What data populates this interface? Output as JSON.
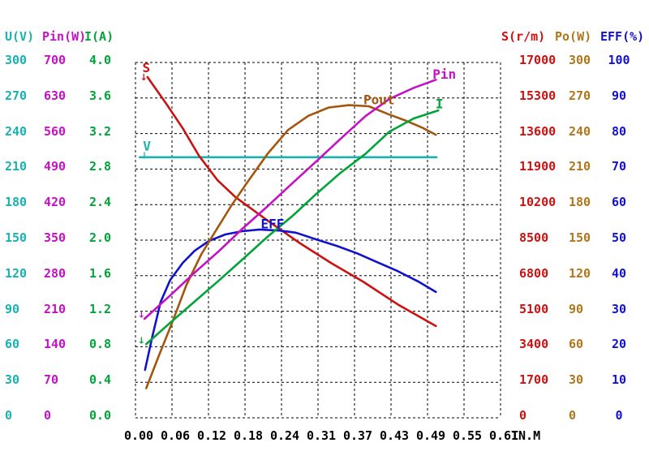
{
  "axes_left": [
    {
      "label": "U(V)",
      "unit": "V",
      "color": "#18b2b2",
      "ticks": [
        "300",
        "270",
        "240",
        "210",
        "180",
        "150",
        "120",
        "90",
        "60",
        "30",
        "0"
      ]
    },
    {
      "label": "Pin(W)",
      "unit": "W",
      "color": "#c511c5",
      "ticks": [
        "700",
        "630",
        "560",
        "490",
        "420",
        "350",
        "280",
        "210",
        "140",
        "70",
        "0"
      ]
    },
    {
      "label": "I(A)",
      "unit": "A",
      "color": "#00a438",
      "ticks": [
        "4.0",
        "3.6",
        "3.2",
        "2.8",
        "2.4",
        "2.0",
        "1.6",
        "1.2",
        "0.8",
        "0.4",
        "0.0"
      ]
    }
  ],
  "axes_right": [
    {
      "label": "S(r/m)",
      "unit": "r/m",
      "color": "#cc1111",
      "ticks": [
        "17000",
        "15300",
        "13600",
        "11900",
        "10200",
        "8500",
        "6800",
        "5100",
        "3400",
        "1700",
        "0"
      ]
    },
    {
      "label": "Po(W)",
      "unit": "W",
      "color": "#b0761a",
      "ticks": [
        "300",
        "270",
        "240",
        "210",
        "180",
        "150",
        "120",
        "90",
        "60",
        "30",
        "0"
      ]
    },
    {
      "label": "EFF(%)",
      "unit": "%",
      "color": "#1212cc",
      "ticks": [
        "100",
        "90",
        "80",
        "70",
        "60",
        "50",
        "40",
        "30",
        "20",
        "10",
        "0"
      ]
    }
  ],
  "x_axis": {
    "ticks": [
      "0.00",
      "0.06",
      "0.12",
      "0.18",
      "0.24",
      "0.31",
      "0.37",
      "0.43",
      "0.49",
      "0.55",
      "0.61"
    ],
    "unit_label": "TN.M",
    "color": "#000000"
  },
  "chart_data": {
    "type": "line",
    "title": "",
    "xlabel": "TN.M",
    "x_range": [
      0,
      0.61
    ],
    "grid": "dashed",
    "series": [
      {
        "name": "V",
        "axis": "U(V)",
        "color": "#18b2b2",
        "y_range": [
          0,
          300
        ],
        "points": [
          [
            0.007,
            220
          ],
          [
            0.503,
            220
          ]
        ]
      },
      {
        "name": "S",
        "axis": "S(r/m)",
        "color": "#cc1111",
        "y_range": [
          0,
          17000
        ],
        "points": [
          [
            0.02,
            16300
          ],
          [
            0.052,
            15000
          ],
          [
            0.079,
            13850
          ],
          [
            0.106,
            12540
          ],
          [
            0.137,
            11370
          ],
          [
            0.167,
            10560
          ],
          [
            0.221,
            9430
          ],
          [
            0.275,
            8350
          ],
          [
            0.329,
            7370
          ],
          [
            0.38,
            6520
          ],
          [
            0.438,
            5430
          ],
          [
            0.502,
            4390
          ]
        ]
      },
      {
        "name": "EFF",
        "axis": "EFF(%)",
        "color": "#1212cc",
        "y_range": [
          0,
          100
        ],
        "points": [
          [
            0.016,
            13.5
          ],
          [
            0.028,
            22.8
          ],
          [
            0.042,
            32.6
          ],
          [
            0.058,
            38.8
          ],
          [
            0.079,
            43.6
          ],
          [
            0.099,
            47.0
          ],
          [
            0.123,
            49.8
          ],
          [
            0.15,
            51.6
          ],
          [
            0.178,
            52.5
          ],
          [
            0.207,
            53.0
          ],
          [
            0.241,
            52.7
          ],
          [
            0.268,
            52.1
          ],
          [
            0.302,
            50.2
          ],
          [
            0.336,
            48.4
          ],
          [
            0.37,
            46.3
          ],
          [
            0.404,
            43.8
          ],
          [
            0.438,
            41.3
          ],
          [
            0.472,
            38.4
          ],
          [
            0.502,
            35.4
          ]
        ]
      },
      {
        "name": "Pout",
        "axis": "Po(W)",
        "color": "#a3560e",
        "y_range": [
          0,
          300
        ],
        "points": [
          [
            0.018,
            25
          ],
          [
            0.038,
            51
          ],
          [
            0.061,
            80
          ],
          [
            0.085,
            112
          ],
          [
            0.11,
            138
          ],
          [
            0.133,
            157
          ],
          [
            0.16,
            179
          ],
          [
            0.187,
            199
          ],
          [
            0.221,
            223
          ],
          [
            0.255,
            243
          ],
          [
            0.289,
            255
          ],
          [
            0.323,
            262
          ],
          [
            0.357,
            264
          ],
          [
            0.39,
            263
          ],
          [
            0.424,
            256
          ],
          [
            0.451,
            251
          ],
          [
            0.479,
            245
          ],
          [
            0.502,
            239
          ]
        ]
      },
      {
        "name": "Pin",
        "axis": "Pin(W)",
        "color": "#c511c5",
        "y_range": [
          0,
          700
        ],
        "points": [
          [
            0.015,
            195
          ],
          [
            0.058,
            241
          ],
          [
            0.099,
            286
          ],
          [
            0.14,
            329
          ],
          [
            0.18,
            374
          ],
          [
            0.221,
            417
          ],
          [
            0.262,
            462
          ],
          [
            0.302,
            505
          ],
          [
            0.343,
            550
          ],
          [
            0.384,
            594
          ],
          [
            0.424,
            628
          ],
          [
            0.465,
            650
          ],
          [
            0.502,
            666
          ]
        ]
      },
      {
        "name": "I",
        "axis": "I(A)",
        "color": "#00a438",
        "y_range": [
          0,
          4
        ],
        "points": [
          [
            0.018,
            0.83
          ],
          [
            0.058,
            1.07
          ],
          [
            0.099,
            1.31
          ],
          [
            0.14,
            1.55
          ],
          [
            0.18,
            1.79
          ],
          [
            0.221,
            2.04
          ],
          [
            0.262,
            2.27
          ],
          [
            0.302,
            2.52
          ],
          [
            0.343,
            2.76
          ],
          [
            0.384,
            2.97
          ],
          [
            0.424,
            3.22
          ],
          [
            0.465,
            3.37
          ],
          [
            0.506,
            3.46
          ]
        ]
      }
    ],
    "annotations": [
      {
        "text": "S",
        "series": "S",
        "t": 0.018,
        "v": 16730,
        "arrow": "down"
      },
      {
        "text": "V",
        "series": "V",
        "t": 0.019,
        "v": 229,
        "arrow": "down"
      },
      {
        "text": "EFF",
        "series": "EFF",
        "t": 0.229,
        "v": 54.5,
        "arrow": null
      },
      {
        "text": "Pout",
        "series": "Pout",
        "t": 0.407,
        "v": 268,
        "arrow": null
      },
      {
        "text": "Pin",
        "series": "Pin",
        "t": 0.516,
        "v": 676,
        "arrow": null
      },
      {
        "text": "I",
        "series": "I",
        "t": 0.508,
        "v": 3.53,
        "arrow": null
      },
      {
        "text": "",
        "series": "Pin",
        "t": 0.01,
        "v": 204,
        "arrow": "start"
      },
      {
        "text": "",
        "series": "I",
        "t": 0.01,
        "v": 0.87,
        "arrow": "start"
      }
    ],
    "legend": "curve labels drawn inline on plot"
  }
}
